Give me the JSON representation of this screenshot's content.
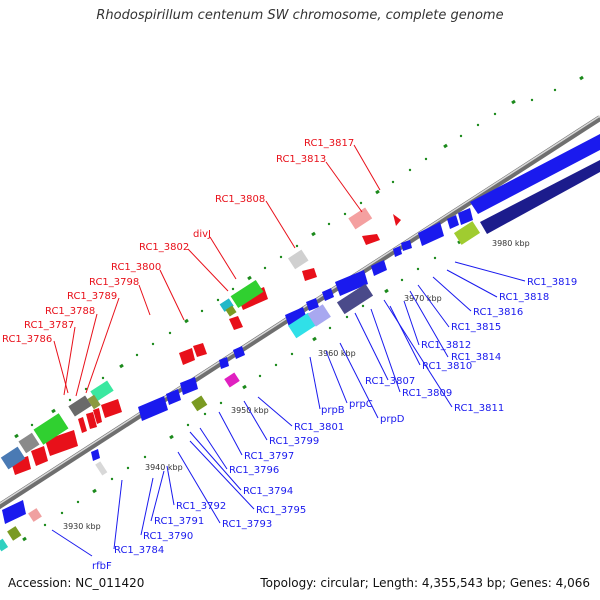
{
  "title": "Rhodospirillum centenum SW chromosome, complete genome",
  "accession": "Accession: NC_011420",
  "summary": "Topology: circular; Length: 4,355,543 bp; Genes: 4,066",
  "kbp_labels": [
    "3930 kbp",
    "3940 kbp",
    "3950 kbp",
    "3960 kbp",
    "3970 kbp",
    "3980 kbp"
  ],
  "gene_labels_red": [
    "RC1_3817",
    "RC1_3813",
    "RC1_3808",
    "divJ",
    "RC1_3802",
    "RC1_3800",
    "RC1_3798",
    "RC1_3789",
    "RC1_3788",
    "RC1_3787",
    "RC1_3786"
  ],
  "gene_labels_blue": [
    "RC1_3819",
    "RC1_3818",
    "RC1_3816",
    "RC1_3815",
    "RC1_3812",
    "RC1_3814",
    "RC1_3810",
    "RC1_3807",
    "RC1_3809",
    "RC1_3811",
    "prpB",
    "prpC",
    "prpD",
    "RC1_3801",
    "RC1_3799",
    "RC1_3797",
    "RC1_3796",
    "RC1_3794",
    "RC1_3795",
    "RC1_3793",
    "RC1_3792",
    "RC1_3791",
    "RC1_3790",
    "RC1_3784",
    "rfbF"
  ],
  "colors": {
    "forward": "#e8101a",
    "reverse": "#1a1aee",
    "backbone": "#8c8c8c",
    "tick": "#1c8a1c",
    "dark_blue": "#1c1c8c"
  }
}
